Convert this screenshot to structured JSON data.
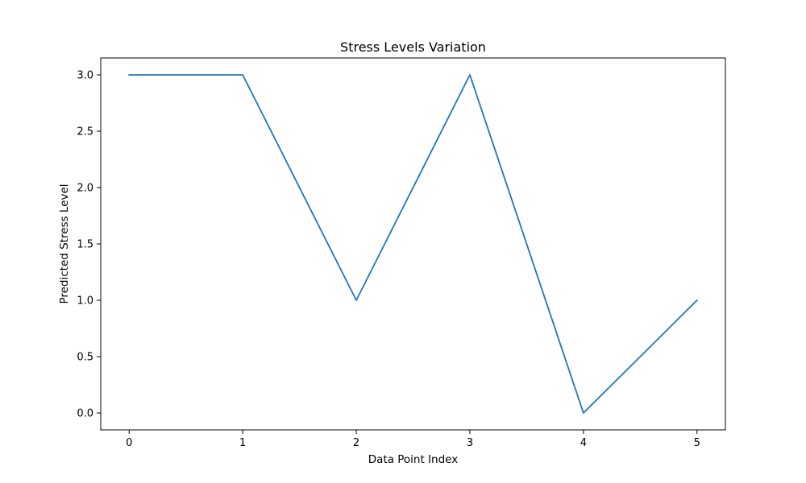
{
  "chart_data": {
    "type": "line",
    "title": "Stress Levels Variation",
    "xlabel": "Data Point Index",
    "ylabel": "Predicted Stress Level",
    "x": [
      0,
      1,
      2,
      3,
      4,
      5
    ],
    "series": [
      {
        "values": [
          3.0,
          3.0,
          1.0,
          3.0,
          0.0,
          1.0
        ],
        "color": "#1f77b4"
      }
    ],
    "xlim": [
      -0.25,
      5.25
    ],
    "ylim": [
      -0.15,
      3.15
    ],
    "xticks": [
      0,
      1,
      2,
      3,
      4,
      5
    ],
    "xtick_labels": [
      "0",
      "1",
      "2",
      "3",
      "4",
      "5"
    ],
    "yticks": [
      0.0,
      0.5,
      1.0,
      1.5,
      2.0,
      2.5,
      3.0
    ],
    "ytick_labels": [
      "0.0",
      "0.5",
      "1.0",
      "1.5",
      "2.0",
      "2.5",
      "3.0"
    ],
    "grid": false,
    "legend": "none"
  }
}
